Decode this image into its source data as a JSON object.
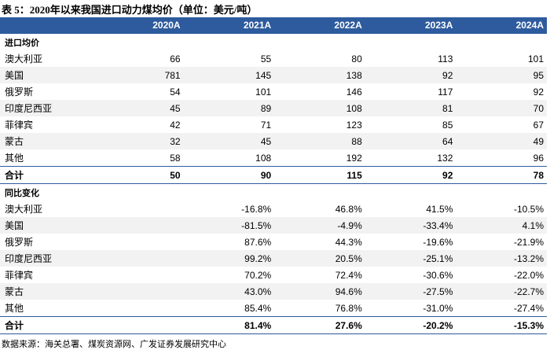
{
  "header": {
    "title": "表 5：2020年以来我国进口动力煤均价（单位：美元/吨）"
  },
  "table": {
    "columns": [
      "2020A",
      "2021A",
      "2022A",
      "2023A",
      "2024A"
    ],
    "sections": [
      {
        "title": "进口均价",
        "rows": [
          [
            "澳大利亚",
            "66",
            "55",
            "80",
            "113",
            "101"
          ],
          [
            "美国",
            "781",
            "145",
            "138",
            "92",
            "95"
          ],
          [
            "俄罗斯",
            "54",
            "101",
            "146",
            "117",
            "92"
          ],
          [
            "印度尼西亚",
            "45",
            "89",
            "108",
            "81",
            "70"
          ],
          [
            "菲律宾",
            "42",
            "71",
            "123",
            "85",
            "67"
          ],
          [
            "蒙古",
            "32",
            "45",
            "88",
            "64",
            "49"
          ],
          [
            "其他",
            "58",
            "108",
            "192",
            "132",
            "96"
          ]
        ],
        "total": [
          "合计",
          "50",
          "90",
          "115",
          "92",
          "78"
        ]
      },
      {
        "title": "同比变化",
        "rows": [
          [
            "澳大利亚",
            "-16.8%",
            "46.8%",
            "41.5%",
            "-10.5%"
          ],
          [
            "美国",
            "-81.5%",
            "-4.9%",
            "-33.4%",
            "4.1%"
          ],
          [
            "俄罗斯",
            "87.6%",
            "44.3%",
            "-19.6%",
            "-21.9%"
          ],
          [
            "印度尼西亚",
            "99.2%",
            "20.5%",
            "-25.1%",
            "-13.2%"
          ],
          [
            "菲律宾",
            "70.2%",
            "72.4%",
            "-30.6%",
            "-22.0%"
          ],
          [
            "蒙古",
            "43.0%",
            "94.6%",
            "-27.5%",
            "-22.7%"
          ],
          [
            "其他",
            "85.4%",
            "76.8%",
            "-31.0%",
            "-27.4%"
          ]
        ],
        "total": [
          "合计",
          "81.4%",
          "27.6%",
          "-20.2%",
          "-15.3%"
        ]
      }
    ]
  },
  "footer": {
    "source": "数据来源：海关总署、煤炭资源网、广发证券发展研究中心"
  }
}
